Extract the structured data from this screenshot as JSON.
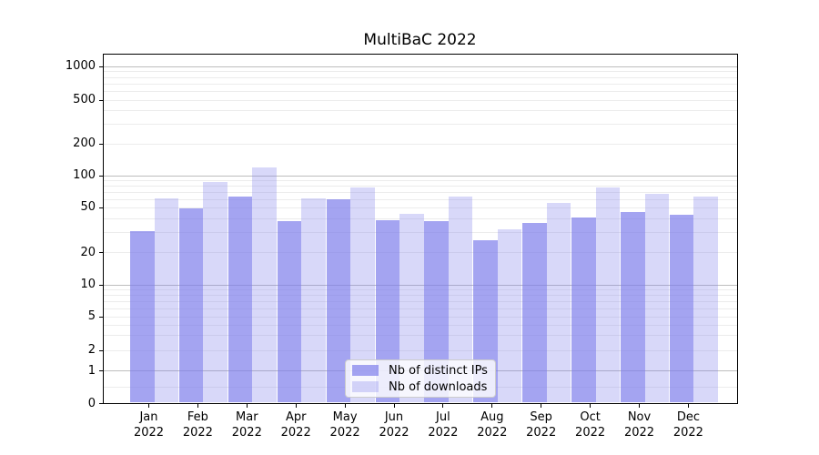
{
  "title": "MultiBaC 2022",
  "chart_data": {
    "type": "bar",
    "title": "MultiBaC 2022",
    "x_categories": [
      "Jan\n2022",
      "Feb\n2022",
      "Mar\n2022",
      "Apr\n2022",
      "May\n2022",
      "Jun\n2022",
      "Jul\n2022",
      "Aug\n2022",
      "Sep\n2022",
      "Oct\n2022",
      "Nov\n2022",
      "Dec\n2022"
    ],
    "series": [
      {
        "name": "Nb of distinct IPs",
        "color": "#7e7eeb",
        "fill_alpha": 0.7,
        "apparent_color": "#a5a5f1",
        "values": [
          31,
          49,
          64,
          38,
          60,
          39,
          38,
          26,
          37,
          41,
          46,
          43
        ]
      },
      {
        "name": "Nb of downloads",
        "color": "#7e7eeb",
        "fill_alpha": 0.3,
        "apparent_color": "#d8d8f9",
        "values": [
          61,
          88,
          121,
          61,
          78,
          44,
          64,
          32,
          56,
          77,
          68,
          64
        ]
      }
    ],
    "y_ticks": [
      0,
      1,
      2,
      5,
      10,
      20,
      50,
      100,
      200,
      500,
      1000
    ],
    "y_scale": "symlog (log above ~5, compressed toward 0)",
    "ylim": [
      0,
      1300
    ],
    "grid": "horizontal major + log minor gridlines",
    "legend_position": "lower center inside plot",
    "legend": [
      "Nb of distinct IPs",
      "Nb of downloads"
    ]
  }
}
